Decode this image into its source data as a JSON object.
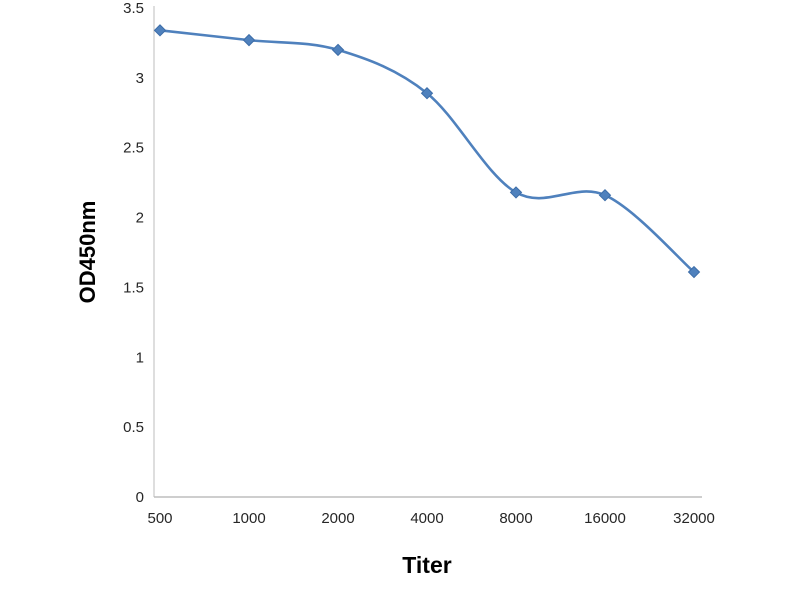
{
  "chart_data": {
    "type": "line",
    "title": "",
    "xlabel": "Titer",
    "ylabel": "OD450nm",
    "categories": [
      "500",
      "1000",
      "2000",
      "4000",
      "8000",
      "16000",
      "32000"
    ],
    "values": [
      3.34,
      3.27,
      3.2,
      2.89,
      2.18,
      2.16,
      1.61
    ],
    "ylim": [
      0,
      3.5
    ],
    "yticks": [
      "0",
      "0.5",
      "1",
      "1.5",
      "2",
      "2.5",
      "3",
      "3.5"
    ],
    "grid": false,
    "legend": "none",
    "marker": "diamond",
    "line_color": "#4f81bd",
    "marker_edge_color": "#3d6da8",
    "axis_color": "#bdbdbd",
    "tick_label_color": "#262626"
  }
}
